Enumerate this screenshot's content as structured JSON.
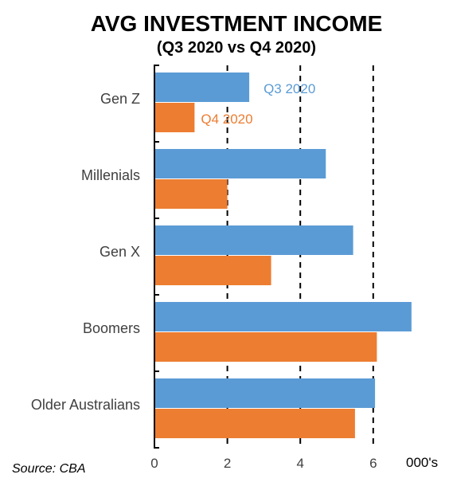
{
  "chart_data": {
    "type": "bar",
    "orientation": "horizontal",
    "title": "AVG INVESTMENT INCOME",
    "subtitle": "(Q3 2020 vs Q4 2020)",
    "categories": [
      "Gen Z",
      "Millenials",
      "Gen X",
      "Boomers",
      "Older Australians"
    ],
    "series": [
      {
        "name": "Q3 2020",
        "color": "#5b9bd5",
        "values": [
          2.6,
          4.7,
          5.45,
          7.05,
          6.05
        ]
      },
      {
        "name": "Q4 2020",
        "color": "#ed7d31",
        "values": [
          1.1,
          2.0,
          3.2,
          6.1,
          5.5
        ]
      }
    ],
    "xlim": [
      0,
      7
    ],
    "xticks": [
      "0",
      "2",
      "4",
      "6"
    ],
    "xtick_values": [
      0,
      2,
      4,
      6
    ],
    "xlabel": "000's",
    "gridlines": "dashed vertical at 2, 4, 6",
    "legend": "inline labels next to Gen Z bars",
    "source": "Source: CBA"
  }
}
